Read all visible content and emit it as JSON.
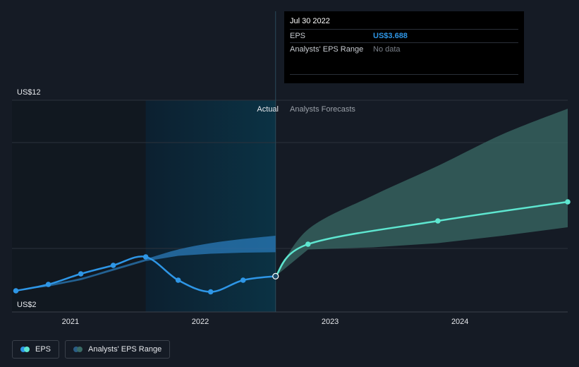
{
  "tooltip": {
    "date": "Jul 30 2022",
    "rows": [
      {
        "label": "EPS",
        "value": "US$3.688"
      },
      {
        "label": "Analysts' EPS Range",
        "value": "No data"
      }
    ]
  },
  "labels": {
    "actual": "Actual",
    "forecast": "Analysts Forecasts"
  },
  "legend": [
    {
      "label": "EPS"
    },
    {
      "label": "Analysts' EPS Range"
    }
  ],
  "colors": {
    "background": "#151b25",
    "eps_actual": "#2e96e6",
    "eps_forecast": "#5ee6d0",
    "range_actual": "#2a7ab8",
    "range_forecast": "#3a6b66",
    "highlight_band": "#0c2c3c",
    "past_band": "#111820"
  },
  "chart_data": {
    "type": "line",
    "x_axis": {
      "ticks": [
        "2021",
        "2022",
        "2023",
        "2024"
      ],
      "range": [
        2020.55,
        2024.83
      ]
    },
    "y_axis": {
      "ticks": [
        {
          "label": "US$12",
          "value": 12
        },
        {
          "label": "US$2",
          "value": 2
        }
      ],
      "range": [
        2,
        12
      ]
    },
    "grid": true,
    "series": [
      {
        "name": "EPS",
        "part": "actual",
        "points": [
          {
            "x": 2020.58,
            "y": 3.0
          },
          {
            "x": 2020.83,
            "y": 3.3
          },
          {
            "x": 2021.08,
            "y": 3.8
          },
          {
            "x": 2021.33,
            "y": 4.2
          },
          {
            "x": 2021.58,
            "y": 4.6
          },
          {
            "x": 2021.83,
            "y": 3.5
          },
          {
            "x": 2022.08,
            "y": 2.95
          },
          {
            "x": 2022.33,
            "y": 3.5
          },
          {
            "x": 2022.58,
            "y": 3.688
          }
        ]
      },
      {
        "name": "EPS",
        "part": "forecast",
        "points": [
          {
            "x": 2022.58,
            "y": 3.688
          },
          {
            "x": 2022.83,
            "y": 5.2
          },
          {
            "x": 2023.83,
            "y": 6.3
          },
          {
            "x": 2024.83,
            "y": 7.2
          }
        ]
      },
      {
        "name": "Analysts' EPS Range",
        "part": "actual",
        "upper": [
          {
            "x": 2020.58,
            "y": 3.0
          },
          {
            "x": 2020.83,
            "y": 3.3
          },
          {
            "x": 2021.08,
            "y": 3.6
          },
          {
            "x": 2021.33,
            "y": 4.05
          },
          {
            "x": 2021.58,
            "y": 4.5
          },
          {
            "x": 2021.83,
            "y": 4.95
          },
          {
            "x": 2022.08,
            "y": 5.25
          },
          {
            "x": 2022.33,
            "y": 5.45
          },
          {
            "x": 2022.58,
            "y": 5.6
          }
        ],
        "lower": [
          {
            "x": 2020.58,
            "y": 3.0
          },
          {
            "x": 2020.83,
            "y": 3.2
          },
          {
            "x": 2021.08,
            "y": 3.5
          },
          {
            "x": 2021.33,
            "y": 3.95
          },
          {
            "x": 2021.58,
            "y": 4.4
          },
          {
            "x": 2021.83,
            "y": 4.65
          },
          {
            "x": 2022.08,
            "y": 4.75
          },
          {
            "x": 2022.33,
            "y": 4.8
          },
          {
            "x": 2022.58,
            "y": 4.82
          }
        ]
      },
      {
        "name": "Analysts' EPS Range",
        "part": "forecast",
        "upper": [
          {
            "x": 2022.58,
            "y": 3.688
          },
          {
            "x": 2022.83,
            "y": 5.9
          },
          {
            "x": 2023.33,
            "y": 7.5
          },
          {
            "x": 2023.83,
            "y": 8.9
          },
          {
            "x": 2024.33,
            "y": 10.4
          },
          {
            "x": 2024.83,
            "y": 11.6
          }
        ],
        "lower": [
          {
            "x": 2022.58,
            "y": 3.688
          },
          {
            "x": 2022.83,
            "y": 4.95
          },
          {
            "x": 2023.33,
            "y": 5.05
          },
          {
            "x": 2023.83,
            "y": 5.25
          },
          {
            "x": 2024.33,
            "y": 5.6
          },
          {
            "x": 2024.83,
            "y": 6.0
          }
        ]
      }
    ]
  }
}
